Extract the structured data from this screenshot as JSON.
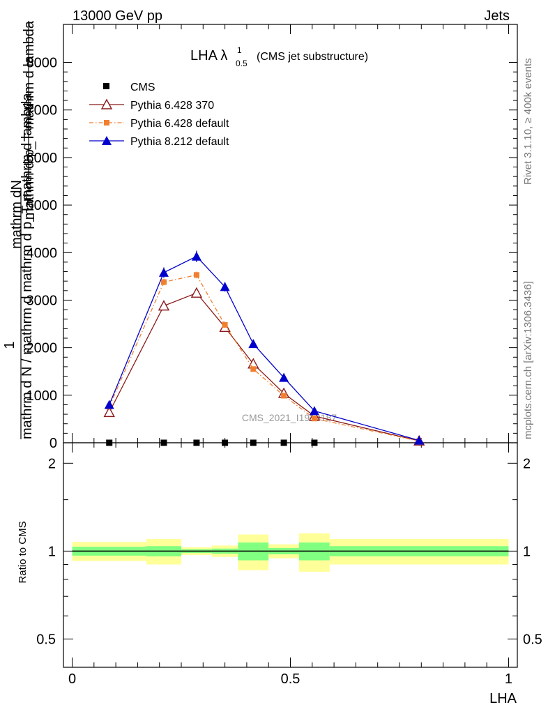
{
  "header": {
    "left": "13000 GeV pp",
    "right": "Jets"
  },
  "side_text": {
    "rivet": "Rivet 3.1.10, ≥ 400k events",
    "mcplots": "mcplots.cern.ch [arXiv:1306.3436]"
  },
  "watermark": "CMS_2021_I1920187",
  "chart_data": [
    {
      "type": "line",
      "title_main": "LHA λ",
      "title_sup": "1",
      "title_sub": "0.5",
      "title_suffix": "(CMS jet substructure)",
      "ylabel_num_top": "mathrm dN",
      "ylabel_den_top": "mathrm d p_T mathrm d lambda",
      "ylabel_one": "1",
      "ylabel_bottom": "mathrm d N / mathrm d mathrm d p_T mathrm d lambda",
      "ylim": [
        0,
        8800
      ],
      "yticks": [
        0,
        1000,
        2000,
        3000,
        4000,
        5000,
        6000,
        7000,
        8000
      ],
      "ytick_labels": [
        "0",
        "1000",
        "2000",
        "3000",
        "4000",
        "5000",
        "6000",
        "7000",
        "8000"
      ],
      "xlim": [
        -0.02,
        1.02
      ],
      "series": [
        {
          "name": "CMS",
          "style": "data",
          "color": "#000000",
          "x": [
            0.085,
            0.21,
            0.285,
            0.35,
            0.415,
            0.485,
            0.555
          ],
          "y": [
            0,
            0,
            0,
            0,
            0,
            0,
            0
          ]
        },
        {
          "name": "Pythia 6.428 370",
          "style": "open-triangle",
          "color": "#8b1a1a",
          "x": [
            0.085,
            0.21,
            0.285,
            0.35,
            0.415,
            0.485,
            0.555,
            0.795
          ],
          "y": [
            640,
            2880,
            3150,
            2430,
            1660,
            1040,
            560,
            40
          ],
          "err": [
            40,
            60,
            70,
            60,
            50,
            40,
            30,
            10
          ]
        },
        {
          "name": "Pythia 6.428 default",
          "style": "square-dashdot",
          "color": "#f08030",
          "x": [
            0.085,
            0.21,
            0.285,
            0.35,
            0.415,
            0.485,
            0.555,
            0.795
          ],
          "y": [
            760,
            3380,
            3530,
            2480,
            1550,
            990,
            510,
            35
          ],
          "err": [
            40,
            70,
            70,
            60,
            50,
            40,
            30,
            10
          ]
        },
        {
          "name": "Pythia 8.212 default",
          "style": "filled-triangle",
          "color": "#0000cc",
          "x": [
            0.085,
            0.21,
            0.285,
            0.35,
            0.415,
            0.485,
            0.555,
            0.795
          ],
          "y": [
            800,
            3580,
            3920,
            3280,
            2080,
            1370,
            670,
            50
          ],
          "err": [
            50,
            110,
            120,
            100,
            80,
            60,
            40,
            10
          ]
        }
      ]
    },
    {
      "type": "band",
      "ylabel": "Ratio to CMS",
      "yscale": "log",
      "ylim": [
        0.4,
        2.35
      ],
      "yticks": [
        0.5,
        1,
        2
      ],
      "ytick_labels": [
        "0.5",
        "1",
        "2"
      ],
      "xlim": [
        -0.02,
        1.02
      ],
      "xlabel": "LHA",
      "xticks": [
        0,
        0.5,
        1
      ],
      "xtick_labels": [
        "0",
        "0.5",
        "1"
      ],
      "bins": [
        {
          "lo": 0.0,
          "hi": 0.17,
          "stat": 0.035,
          "tot": 0.075
        },
        {
          "lo": 0.17,
          "hi": 0.25,
          "stat": 0.04,
          "tot": 0.1
        },
        {
          "lo": 0.25,
          "hi": 0.32,
          "stat": 0.015,
          "tot": 0.03
        },
        {
          "lo": 0.32,
          "hi": 0.38,
          "stat": 0.02,
          "tot": 0.045
        },
        {
          "lo": 0.38,
          "hi": 0.45,
          "stat": 0.07,
          "tot": 0.14
        },
        {
          "lo": 0.45,
          "hi": 0.52,
          "stat": 0.025,
          "tot": 0.055
        },
        {
          "lo": 0.52,
          "hi": 0.59,
          "stat": 0.07,
          "tot": 0.15
        },
        {
          "lo": 0.59,
          "hi": 1.0,
          "stat": 0.04,
          "tot": 0.1
        }
      ]
    }
  ]
}
